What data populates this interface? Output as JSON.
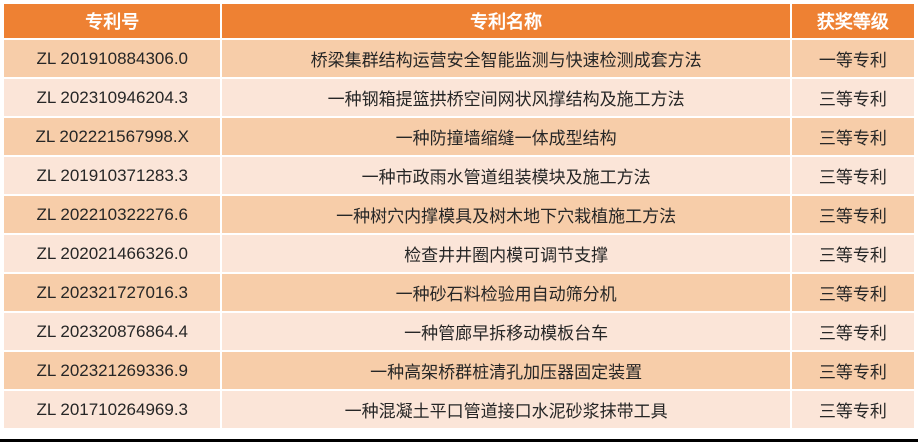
{
  "colors": {
    "header_bg": "#EE8133",
    "header_text": "#FFFFFF",
    "row_band_dark": "#F7CDA9",
    "row_band_light": "#FBE5D8",
    "cell_text": "#262626",
    "grid_gap": "#FFFFFF",
    "bottom_border": "#000000"
  },
  "chart_data": {
    "type": "table",
    "title": "",
    "columns": [
      "专利号",
      "专利名称",
      "获奖等级"
    ],
    "rows": [
      {
        "patent_no": "ZL 201910884306.0",
        "patent_name": "桥梁集群结构运营安全智能监测与快速检测成套方法",
        "award_level": "一等专利"
      },
      {
        "patent_no": "ZL 202310946204.3",
        "patent_name": "一种钢箱提篮拱桥空间网状风撑结构及施工方法",
        "award_level": "三等专利"
      },
      {
        "patent_no": "ZL 202221567998.X",
        "patent_name": "一种防撞墙缩缝一体成型结构",
        "award_level": "三等专利"
      },
      {
        "patent_no": "ZL 201910371283.3",
        "patent_name": "一种市政雨水管道组装模块及施工方法",
        "award_level": "三等专利"
      },
      {
        "patent_no": "ZL 202210322276.6",
        "patent_name": "一种树穴内撑模具及树木地下穴栽植施工方法",
        "award_level": "三等专利"
      },
      {
        "patent_no": "ZL 202021466326.0",
        "patent_name": "检查井井圈内模可调节支撑",
        "award_level": "三等专利"
      },
      {
        "patent_no": "ZL 202321727016.3",
        "patent_name": "一种砂石料检验用自动筛分机",
        "award_level": "三等专利"
      },
      {
        "patent_no": "ZL 202320876864.4",
        "patent_name": "一种管廊早拆移动模板台车",
        "award_level": "三等专利"
      },
      {
        "patent_no": "ZL 202321269336.9",
        "patent_name": "一种高架桥群桩清孔加压器固定装置",
        "award_level": "三等专利"
      },
      {
        "patent_no": "ZL 201710264969.3",
        "patent_name": "一种混凝土平口管道接口水泥砂浆抹带工具",
        "award_level": "三等专利"
      }
    ],
    "layout": {
      "banded_rows": true,
      "header_style": "solid-orange",
      "bottom_border": "solid-black"
    }
  }
}
